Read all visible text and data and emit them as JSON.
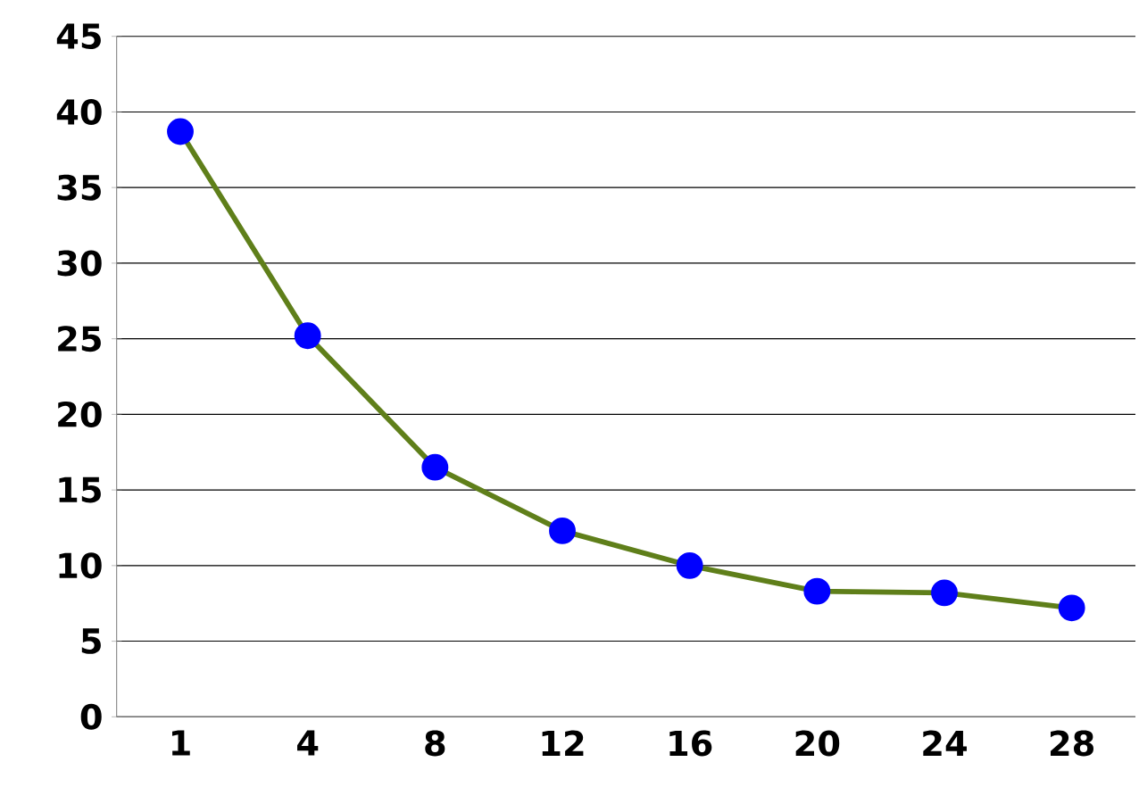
{
  "chart_data": {
    "type": "line",
    "categories": [
      "1",
      "4",
      "8",
      "12",
      "16",
      "20",
      "24",
      "28"
    ],
    "series": [
      {
        "color": "#5f7f1a",
        "values": [
          38.7,
          25.2,
          16.5,
          12.3,
          10.0,
          8.3,
          8.2,
          7.2
        ]
      }
    ],
    "ylim": [
      0,
      45
    ],
    "yticks": [
      0,
      5,
      10,
      15,
      20,
      25,
      30,
      35,
      40,
      45
    ],
    "grid": "y",
    "marker": "circle"
  }
}
